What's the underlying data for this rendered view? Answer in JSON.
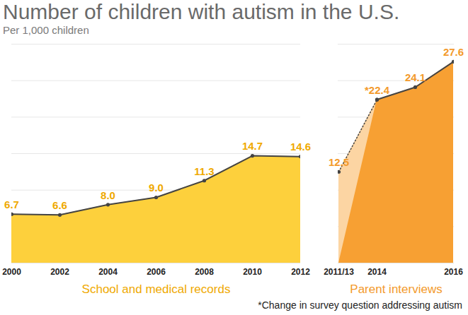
{
  "chart_data": [
    {
      "type": "area",
      "title": "Number of children with autism in the U.S.",
      "subtitle": "Per 1,000 children",
      "xlabel": "School and medical records",
      "x": [
        2000,
        2002,
        2004,
        2006,
        2008,
        2010,
        2012
      ],
      "values": [
        6.7,
        6.6,
        8.0,
        9.0,
        11.3,
        14.7,
        14.6
      ],
      "value_labels": [
        "6.7",
        "6.6",
        "8.0",
        "9.0",
        "11.3",
        "14.7",
        "14.6"
      ],
      "color": "#fdd03c",
      "xlim": [
        2000,
        2012
      ],
      "xticks": [
        2000,
        2002,
        2004,
        2006,
        2008,
        2010,
        2012
      ],
      "ylim": [
        0,
        30
      ],
      "yticks": [
        0,
        5,
        10,
        15,
        20,
        25,
        30
      ],
      "grid": true,
      "tick_labels": "x",
      "data_labels": true,
      "marker": "circle"
    },
    {
      "type": "area",
      "xlabel": "Parent interviews",
      "annotation": "*Change in survey question addressing autism",
      "categories": [
        "2011/13",
        "2014",
        null,
        "2016"
      ],
      "series": [
        {
          "color": "#fcd5a3",
          "line_style": "dotted",
          "values": [
            12.5,
            22.4,
            null,
            null
          ],
          "value_labels": [
            "12.5",
            null,
            null,
            null
          ]
        },
        {
          "color": "#f7a033",
          "line_style": "solid",
          "values": [
            null,
            22.4,
            24.1,
            27.6
          ],
          "value_labels": [
            null,
            "*22.4",
            "24.1",
            "27.6"
          ]
        }
      ],
      "ylim": [
        0,
        30
      ],
      "yticks": [
        0,
        5,
        10,
        15,
        20,
        25,
        30
      ],
      "grid": true,
      "tick_labels": "x",
      "data_labels": true,
      "marker": "circle"
    }
  ]
}
